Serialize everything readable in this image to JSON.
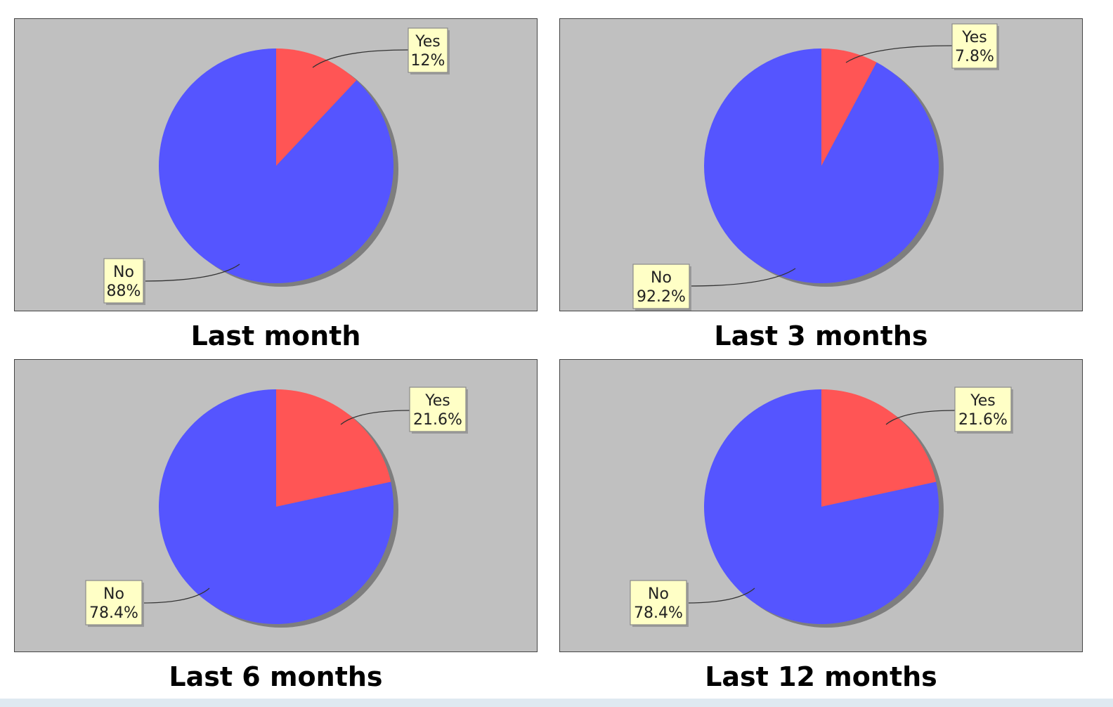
{
  "colors": {
    "panel_background": "#c0c0c0",
    "yes": "#ff5555",
    "no": "#5555ff",
    "label_background": "#ffffc6",
    "shadow": "#7e7e7e"
  },
  "chart_data": [
    {
      "type": "pie",
      "title": "Last month",
      "slices": [
        {
          "label": "Yes",
          "value": 12,
          "text": "12%",
          "color": "#ff5555"
        },
        {
          "label": "No",
          "value": 88,
          "text": "88%",
          "color": "#5555ff"
        }
      ]
    },
    {
      "type": "pie",
      "title": "Last 3 months",
      "slices": [
        {
          "label": "Yes",
          "value": 7.8,
          "text": "7.8%",
          "color": "#ff5555"
        },
        {
          "label": "No",
          "value": 92.2,
          "text": "92.2%",
          "color": "#5555ff"
        }
      ]
    },
    {
      "type": "pie",
      "title": "Last 6 months",
      "slices": [
        {
          "label": "Yes",
          "value": 21.6,
          "text": "21.6%",
          "color": "#ff5555"
        },
        {
          "label": "No",
          "value": 78.4,
          "text": "78.4%",
          "color": "#5555ff"
        }
      ]
    },
    {
      "type": "pie",
      "title": "Last 12 months",
      "slices": [
        {
          "label": "Yes",
          "value": 21.6,
          "text": "21.6%",
          "color": "#ff5555"
        },
        {
          "label": "No",
          "value": 78.4,
          "text": "78.4%",
          "color": "#5555ff"
        }
      ]
    }
  ]
}
